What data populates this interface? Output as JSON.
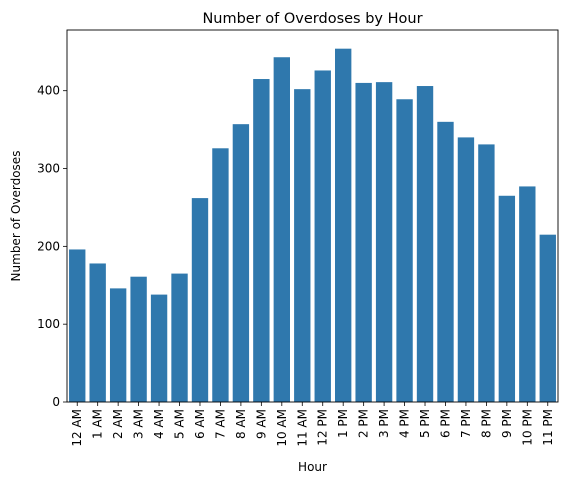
{
  "chart_data": {
    "type": "bar",
    "title": "Number of Overdoses by Hour",
    "xlabel": "Hour",
    "ylabel": "Number of Overdoses",
    "ylim": [
      0,
      478
    ],
    "yticks": [
      0,
      100,
      200,
      300,
      400
    ],
    "categories": [
      "12 AM",
      "1 AM",
      "2 AM",
      "3 AM",
      "4 AM",
      "5 AM",
      "6 AM",
      "7 AM",
      "8 AM",
      "9 AM",
      "10 AM",
      "11 AM",
      "12 PM",
      "1 PM",
      "2 PM",
      "3 PM",
      "4 PM",
      "5 PM",
      "6 PM",
      "7 PM",
      "8 PM",
      "9 PM",
      "10 PM",
      "11 PM"
    ],
    "values": [
      196,
      178,
      146,
      161,
      138,
      165,
      262,
      326,
      357,
      415,
      443,
      402,
      426,
      454,
      410,
      411,
      389,
      406,
      360,
      340,
      331,
      265,
      277,
      215
    ],
    "bar_color": "#2f78ad",
    "grid": false,
    "legend": "none"
  }
}
